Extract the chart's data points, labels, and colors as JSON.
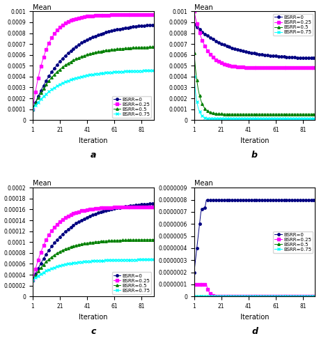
{
  "iterations": 90,
  "x_ticks": [
    1,
    21,
    41,
    61,
    81
  ],
  "colors": {
    "BSRR0": "#000080",
    "BSRR025": "#ff00ff",
    "BSRR05": "#008000",
    "BSRR075": "#00ffff"
  },
  "markers": {
    "BSRR0": "o",
    "BSRR025": "s",
    "BSRR05": "^",
    "BSRR075": "x"
  },
  "legend_labels": [
    "BSRR=0",
    "BSRR=0.25",
    "BSRR=0.5",
    "BSRR=0.75"
  ],
  "subplot_labels": [
    "a",
    "b",
    "c",
    "d"
  ],
  "panel_a": {
    "title": "Mean",
    "ylim": [
      0,
      0.001
    ],
    "ytick_labels": [
      "0",
      "0.0001",
      "0.0002",
      "0.0003",
      "0.0004",
      "0.0005",
      "0.0006",
      "0.0007",
      "0.0008",
      "0.0009",
      "0.001"
    ],
    "yticks": [
      0,
      0.0001,
      0.0002,
      0.0003,
      0.0004,
      0.0005,
      0.0006,
      0.0007,
      0.0008,
      0.0009,
      0.001
    ],
    "final_values": {
      "BSRR0": 0.0009,
      "BSRR025": 0.00097,
      "BSRR05": 0.00068,
      "BSRR075": 0.00046
    },
    "start_values": {
      "BSRR0": 0.0001,
      "BSRR025": 0.0001,
      "BSRR05": 0.0001,
      "BSRR075": 0.0001
    },
    "rise_speed": {
      "BSRR0": 0.04,
      "BSRR025": 0.1,
      "BSRR05": 0.05,
      "BSRR075": 0.05
    }
  },
  "panel_b": {
    "title": "Mean",
    "ylim": [
      0,
      0.001
    ],
    "ytick_labels": [
      "0",
      "0.0001",
      "0.0002",
      "0.0003",
      "0.0004",
      "0.0005",
      "0.0006",
      "0.0007",
      "0.0008",
      "0.0009",
      "0.001"
    ],
    "yticks": [
      0,
      0.0001,
      0.0002,
      0.0003,
      0.0004,
      0.0005,
      0.0006,
      0.0007,
      0.0008,
      0.0009,
      0.001
    ],
    "final_values": {
      "BSRR0": 0.00056,
      "BSRR025": 0.00048,
      "BSRR05": 5.5e-05,
      "BSRR075": 1.2e-05
    },
    "start_values": {
      "BSRR0": 0.00088,
      "BSRR025": 0.001,
      "BSRR05": 0.00062,
      "BSRR075": 0.0004
    },
    "decay_speed": {
      "BSRR0": 0.04,
      "BSRR025": 0.12,
      "BSRR05": 0.3,
      "BSRR075": 0.45
    }
  },
  "panel_c": {
    "title": "Mean",
    "ylim": [
      0,
      0.0002
    ],
    "ytick_labels": [
      "0",
      "0.00002",
      "0.00004",
      "0.00006",
      "0.00008",
      "0.0001",
      "0.00012",
      "0.00014",
      "0.00016",
      "0.00018",
      "0.0002"
    ],
    "yticks": [
      0,
      2e-05,
      4e-05,
      6e-05,
      8e-05,
      0.0001,
      0.00012,
      0.00014,
      0.00016,
      0.00018,
      0.0002
    ],
    "final_values": {
      "BSRR0": 0.000175,
      "BSRR025": 0.000165,
      "BSRR05": 0.000105,
      "BSRR075": 6.8e-05
    },
    "start_values": {
      "BSRR0": 3e-05,
      "BSRR025": 3e-05,
      "BSRR05": 3e-05,
      "BSRR075": 3e-05
    },
    "rise_speed": {
      "BSRR0": 0.04,
      "BSRR025": 0.08,
      "BSRR05": 0.06,
      "BSRR075": 0.06
    }
  },
  "panel_d": {
    "title": "Mean",
    "ylim": [
      0,
      9e-07
    ],
    "ytick_labels": [
      "0",
      "0.0000001",
      "0.0000002",
      "0.0000003",
      "0.0000004",
      "0.0000005",
      "0.0000006",
      "0.0000007",
      "0.0000008",
      "0.0000009"
    ],
    "yticks": [
      0,
      1e-07,
      2e-07,
      3e-07,
      4e-07,
      5e-07,
      6e-07,
      7e-07,
      8e-07,
      9e-07
    ]
  }
}
